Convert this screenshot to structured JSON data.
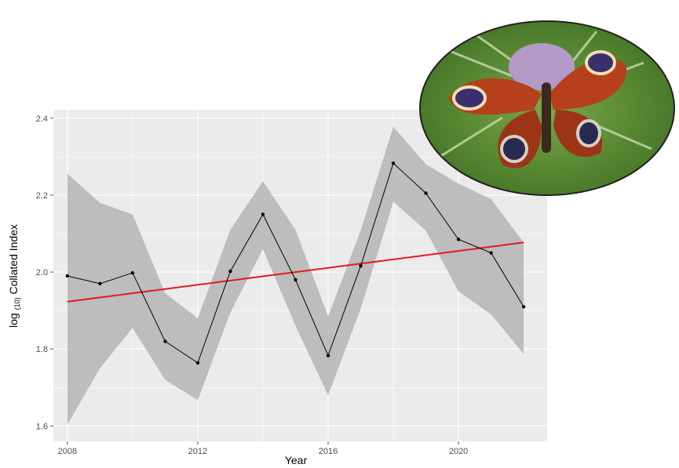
{
  "chart_data": {
    "type": "line",
    "xlabel": "Year",
    "ylabel_parts": [
      "log",
      "(10)",
      "Collated Index"
    ],
    "x": [
      2008,
      2009,
      2010,
      2011,
      2012,
      2013,
      2014,
      2015,
      2016,
      2017,
      2018,
      2019,
      2020,
      2021,
      2022
    ],
    "series": [
      {
        "color": "#000000",
        "values": [
          1.99,
          1.97,
          1.998,
          1.82,
          1.764,
          2.002,
          2.15,
          1.98,
          1.783,
          2.016,
          2.283,
          2.205,
          2.085,
          2.05,
          1.91
        ]
      }
    ],
    "band": {
      "color": "#bdbdbd",
      "upper": [
        2.256,
        2.18,
        2.15,
        1.945,
        1.88,
        2.11,
        2.236,
        2.11,
        1.885,
        2.108,
        2.378,
        2.28,
        2.23,
        2.19,
        2.077
      ],
      "lower": [
        1.604,
        1.75,
        1.855,
        1.72,
        1.667,
        1.895,
        2.06,
        1.86,
        1.68,
        1.905,
        2.183,
        2.108,
        1.95,
        1.89,
        1.787
      ]
    },
    "trend": {
      "color": "#e31a1c",
      "x": [
        2008,
        2022
      ],
      "values": [
        1.923,
        2.077
      ]
    },
    "xlim": [
      2007.57,
      2022.72
    ],
    "ylim": [
      1.56,
      2.422
    ],
    "xticks": [
      2008,
      2012,
      2016,
      2020
    ],
    "yticks": [
      2.4,
      2.2,
      {
        "value": 2,
        "label": "2.0"
      },
      1.8,
      1.6
    ],
    "grid": true,
    "panel_color": "#ebebeb"
  }
}
